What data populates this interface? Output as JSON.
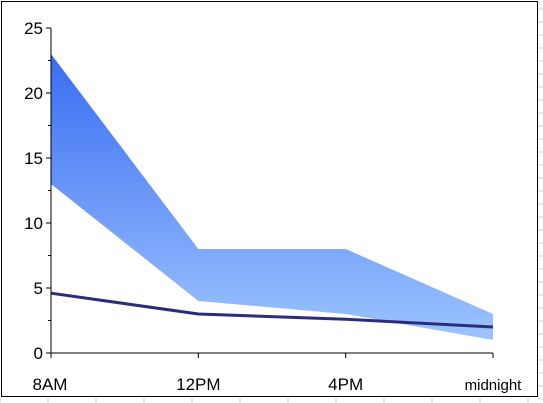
{
  "chart_data": {
    "type": "area",
    "categories": [
      "8AM",
      "12PM",
      "4PM",
      "midnight"
    ],
    "series": [
      {
        "role": "band-lower",
        "values": [
          13,
          4,
          3,
          1
        ]
      },
      {
        "role": "band-upper",
        "values": [
          23,
          8,
          8,
          3
        ]
      },
      {
        "role": "line",
        "values": [
          4.6,
          3,
          2.6,
          2
        ]
      }
    ],
    "y_ticks": [
      "0",
      "5",
      "10",
      "15",
      "20",
      "25"
    ],
    "ylim": [
      0,
      25
    ],
    "title": "",
    "xlabel": "",
    "ylabel": "",
    "legend": "none",
    "grid": false,
    "colors": {
      "band_top": "#3a6cf2",
      "band_bottom": "#9cc4ff",
      "line": "#2b2d7a",
      "axis": "#000000"
    }
  }
}
